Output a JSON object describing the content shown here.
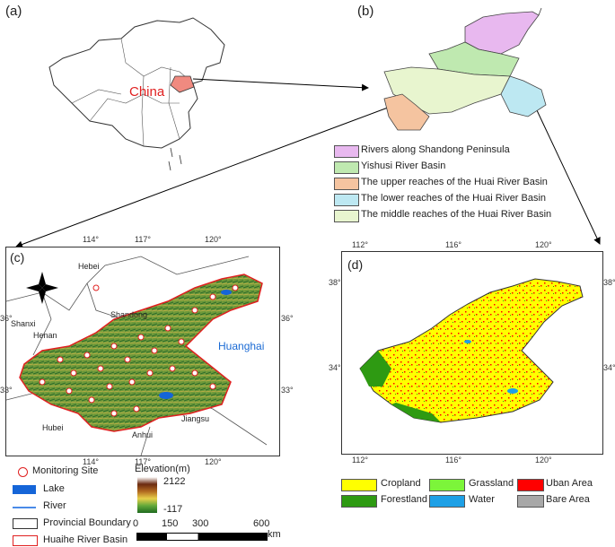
{
  "panels": {
    "a": "(a)",
    "b": "(b)",
    "c": "(c)",
    "d": "(d)"
  },
  "panel_a": {
    "country_label": "China"
  },
  "panel_b": {
    "legend": [
      {
        "label": "Rivers along Shandong Peninsula",
        "color": "#e8b8ef"
      },
      {
        "label": "Yishusi River Basin",
        "color": "#bfe9b0"
      },
      {
        "label": "The upper reaches of the Huai River Basin",
        "color": "#f5c4a0"
      },
      {
        "label": "The lower reaches of the Huai River Basin",
        "color": "#bde8f2"
      },
      {
        "label": "The middle reaches of the Huai River Basin",
        "color": "#e8f5cf"
      }
    ]
  },
  "panel_c": {
    "top_ticks": [
      "114°",
      "117°",
      "120°"
    ],
    "bottom_ticks": [
      "114°",
      "117°",
      "120°"
    ],
    "left_ticks": [
      "36°",
      "33°"
    ],
    "right_ticks": [
      "36°",
      "33°"
    ],
    "provinces": [
      "Hebei",
      "Shanxi",
      "Shandong",
      "Henan",
      "Jiangsu",
      "Anhui",
      "Hubei"
    ],
    "sea_label": "Huanghai",
    "legend": {
      "monitoring": "Monitoring Site",
      "lake": "Lake",
      "river": "River",
      "provincial": "Provincial Boundary",
      "basin": "Huaihe River Basin"
    },
    "elevation": {
      "title": "Elevation(m)",
      "max": "2122",
      "min": "-117"
    },
    "scale": {
      "labels": [
        "0",
        "150",
        "300",
        "600"
      ],
      "unit": "km"
    }
  },
  "panel_d": {
    "top_ticks": [
      "112°",
      "116°",
      "120°"
    ],
    "bottom_ticks": [
      "112°",
      "116°",
      "120°"
    ],
    "left_ticks": [
      "38°",
      "34°"
    ],
    "right_ticks": [
      "38°",
      "34°"
    ],
    "legend": [
      {
        "label": "Cropland",
        "color": "#ffff00"
      },
      {
        "label": "Grassland",
        "color": "#7cf53a"
      },
      {
        "label": "Uban Area",
        "color": "#ff0000"
      },
      {
        "label": "Forestland",
        "color": "#2e9a12"
      },
      {
        "label": "Water",
        "color": "#1ea0e6"
      },
      {
        "label": "Bare Area",
        "color": "#a8a8a8"
      }
    ]
  }
}
